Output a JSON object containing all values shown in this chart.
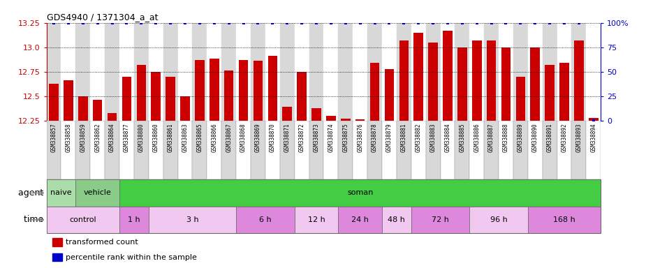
{
  "title": "GDS4940 / 1371304_a_at",
  "samples": [
    "GSM338857",
    "GSM338858",
    "GSM338859",
    "GSM338862",
    "GSM338864",
    "GSM338877",
    "GSM338880",
    "GSM338860",
    "GSM338861",
    "GSM338863",
    "GSM338865",
    "GSM338866",
    "GSM338867",
    "GSM338868",
    "GSM338869",
    "GSM338870",
    "GSM338871",
    "GSM338872",
    "GSM338873",
    "GSM338874",
    "GSM338875",
    "GSM338876",
    "GSM338878",
    "GSM338879",
    "GSM338881",
    "GSM338882",
    "GSM338883",
    "GSM338884",
    "GSM338885",
    "GSM338886",
    "GSM338887",
    "GSM338888",
    "GSM338889",
    "GSM338890",
    "GSM338891",
    "GSM338892",
    "GSM338893",
    "GSM338894"
  ],
  "bar_values": [
    12.63,
    12.66,
    12.5,
    12.46,
    12.33,
    12.7,
    12.82,
    12.75,
    12.7,
    12.5,
    12.87,
    12.88,
    12.76,
    12.87,
    12.86,
    12.91,
    12.39,
    12.75,
    12.38,
    12.3,
    12.27,
    12.26,
    12.84,
    12.78,
    13.07,
    13.15,
    13.05,
    13.17,
    13.0,
    13.07,
    13.07,
    13.0,
    12.7,
    13.0,
    12.82,
    12.84,
    13.07,
    12.28
  ],
  "percentile_values": [
    100,
    100,
    100,
    100,
    100,
    100,
    100,
    100,
    100,
    100,
    100,
    100,
    100,
    100,
    100,
    100,
    100,
    100,
    100,
    100,
    100,
    100,
    100,
    100,
    100,
    100,
    100,
    100,
    100,
    100,
    100,
    100,
    100,
    100,
    100,
    100,
    100,
    0
  ],
  "ylim_left": [
    12.25,
    13.25
  ],
  "ylim_right": [
    0,
    100
  ],
  "yticks_left": [
    12.25,
    12.5,
    12.75,
    13.0,
    13.25
  ],
  "yticks_right": [
    0,
    25,
    50,
    75,
    100
  ],
  "bar_color": "#cc0000",
  "dot_color": "#0000cc",
  "bg_even": "#d8d8d8",
  "bg_odd": "#ffffff",
  "agent_groups": [
    {
      "label": "naive",
      "start": 0,
      "end": 2,
      "color": "#aaddaa"
    },
    {
      "label": "vehicle",
      "start": 2,
      "end": 5,
      "color": "#88cc88"
    },
    {
      "label": "soman",
      "start": 5,
      "end": 38,
      "color": "#44cc44"
    }
  ],
  "time_groups": [
    {
      "label": "control",
      "start": 0,
      "end": 5,
      "alt": false
    },
    {
      "label": "1 h",
      "start": 5,
      "end": 7,
      "alt": true
    },
    {
      "label": "3 h",
      "start": 7,
      "end": 13,
      "alt": false
    },
    {
      "label": "6 h",
      "start": 13,
      "end": 17,
      "alt": true
    },
    {
      "label": "12 h",
      "start": 17,
      "end": 20,
      "alt": false
    },
    {
      "label": "24 h",
      "start": 20,
      "end": 23,
      "alt": true
    },
    {
      "label": "48 h",
      "start": 23,
      "end": 25,
      "alt": false
    },
    {
      "label": "72 h",
      "start": 25,
      "end": 29,
      "alt": true
    },
    {
      "label": "96 h",
      "start": 29,
      "end": 33,
      "alt": false
    },
    {
      "label": "168 h",
      "start": 33,
      "end": 38,
      "alt": true
    }
  ],
  "time_color1": "#f0c8f0",
  "time_color2": "#dd88dd",
  "agent_label": "agent",
  "time_label": "time",
  "legend_items": [
    {
      "label": "transformed count",
      "color": "#cc0000"
    },
    {
      "label": "percentile rank within the sample",
      "color": "#0000cc"
    }
  ]
}
